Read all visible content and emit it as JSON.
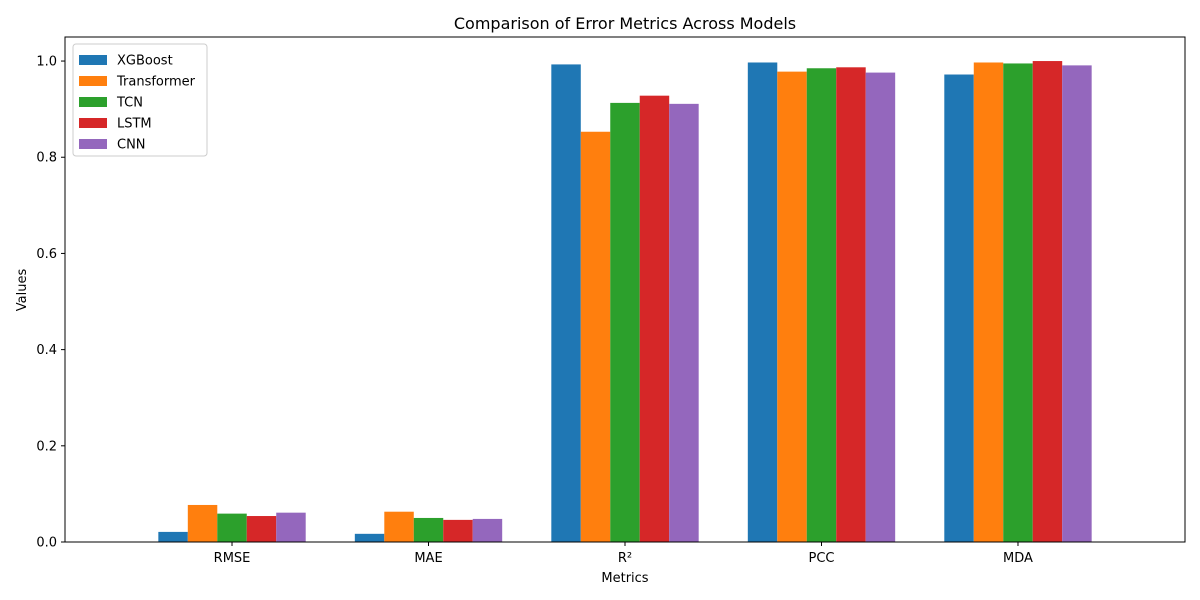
{
  "chart_data": {
    "type": "bar",
    "title": "Comparison of Error Metrics Across Models",
    "xlabel": "Metrics",
    "ylabel": "Values",
    "categories": [
      "RMSE",
      "MAE",
      "R²",
      "PCC",
      "MDA"
    ],
    "ylim": [
      0,
      1.05
    ],
    "yticks": [
      0.0,
      0.2,
      0.4,
      0.6,
      0.8,
      1.0
    ],
    "ytick_labels": [
      "0.0",
      "0.2",
      "0.4",
      "0.6",
      "0.8",
      "1.0"
    ],
    "grid": false,
    "legend_position": "top-left",
    "series": [
      {
        "name": "XGBoost",
        "color": "#1f77b4",
        "values": [
          0.021,
          0.017,
          0.993,
          0.997,
          0.972
        ]
      },
      {
        "name": "Transformer",
        "color": "#ff7f0e",
        "values": [
          0.077,
          0.063,
          0.853,
          0.978,
          0.997
        ]
      },
      {
        "name": "TCN",
        "color": "#2ca02c",
        "values": [
          0.059,
          0.05,
          0.913,
          0.985,
          0.995
        ]
      },
      {
        "name": "LSTM",
        "color": "#d62728",
        "values": [
          0.054,
          0.046,
          0.928,
          0.987,
          1.0
        ]
      },
      {
        "name": "CNN",
        "color": "#9467bd",
        "values": [
          0.061,
          0.048,
          0.911,
          0.976,
          0.991
        ]
      }
    ]
  }
}
